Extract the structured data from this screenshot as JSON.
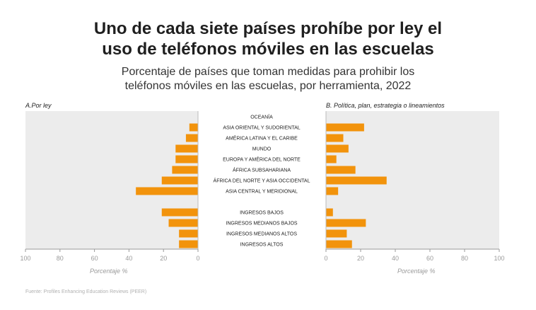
{
  "header": {
    "title_line1": "Uno de cada siete países prohíbe por ley el",
    "title_line2": "uso de teléfonos móviles en las escuelas",
    "subtitle_line1": "Porcentaje de países que toman medidas para prohibir los",
    "subtitle_line2": "teléfonos móviles en las escuelas, por herramienta, 2022"
  },
  "source": "Fuente: Profiles Enhancing Education Reviews (PEER)",
  "chart_data": {
    "type": "bar",
    "orientation": "horizontal",
    "title": "Uno de cada siete países prohíbe por ley el uso de teléfonos móviles en las escuelas",
    "categories": [
      "OCEANÍA",
      "ASIA ORIENTAL Y SUDORIENTAL",
      "AMÉRICA LATINA Y EL CARIBE",
      "MUNDO",
      "EUROPA Y AMÉRICA DEL NORTE",
      "ÁFRICA SUBSAHARIANA",
      "ÁFRICA DEL NORTE Y ASIA OCCIDENTAL",
      "ASIA CENTRAL Y MERIDIONAL",
      "INGRESOS BAJOS",
      "INGRESOS MEDIANOS BAJOS",
      "INGRESOS MEDIANOS ALTOS",
      "INGRESOS ALTOS"
    ],
    "series": [
      {
        "name": "A.Por ley",
        "direction": "left",
        "values": [
          0,
          5,
          7,
          13,
          13,
          15,
          21,
          36,
          21,
          17,
          11,
          11
        ],
        "xlim": [
          100,
          0
        ],
        "xticks": [
          100,
          80,
          60,
          40,
          20,
          0
        ],
        "xlabel": "Porcentaje %"
      },
      {
        "name": "B. Política, plan, estrategia o lineamientos",
        "direction": "right",
        "values": [
          0,
          22,
          10,
          13,
          6,
          17,
          35,
          7,
          4,
          23,
          12,
          15
        ],
        "xlim": [
          0,
          100
        ],
        "xticks": [
          0,
          20,
          40,
          60,
          80,
          100
        ],
        "xlabel": "Porcentaje %"
      }
    ],
    "colors": {
      "bar": "#f2930c",
      "panel": "#ececec",
      "axis": "#9a9a9a"
    },
    "grid": false
  }
}
